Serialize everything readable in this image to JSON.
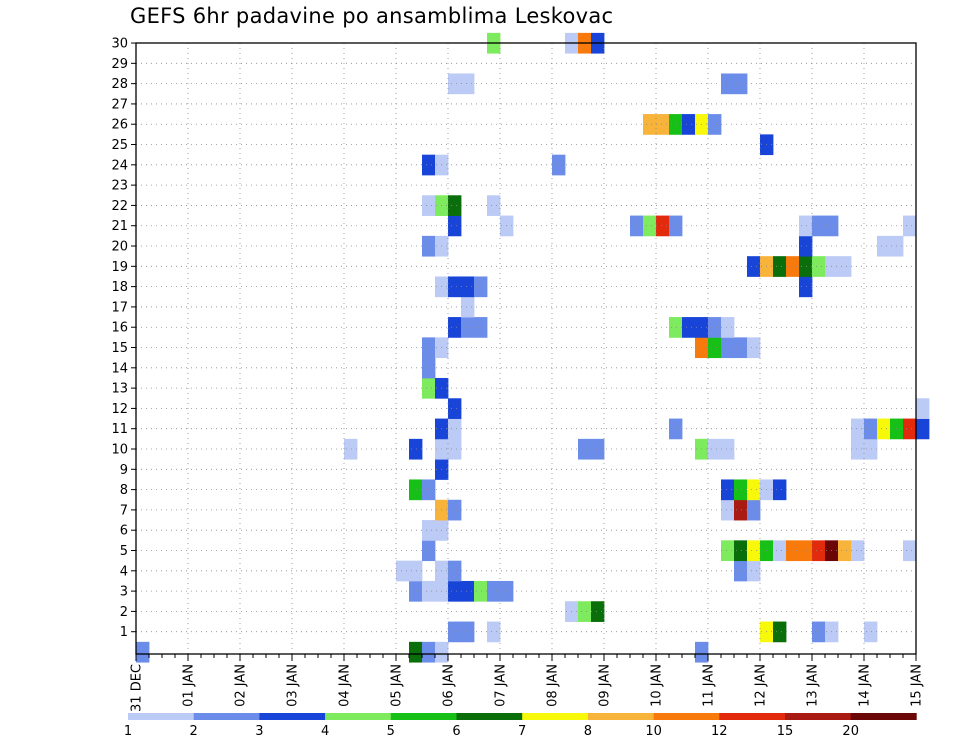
{
  "chart_data": {
    "type": "heatmap",
    "title": "GEFS 6hr padavine po ansamblima Leskovac",
    "xlabel": "",
    "ylabel": "",
    "x_tick_labels": [
      "31 DEC",
      "01 JAN",
      "02 JAN",
      "03 JAN",
      "04 JAN",
      "05 JAN",
      "06 JAN",
      "07 JAN",
      "08 JAN",
      "09 JAN",
      "10 JAN",
      "11 JAN",
      "12 JAN",
      "13 JAN",
      "14 JAN",
      "15 JAN"
    ],
    "y_tick_labels": [
      "1",
      "2",
      "3",
      "4",
      "5",
      "6",
      "7",
      "8",
      "9",
      "10",
      "11",
      "12",
      "13",
      "14",
      "15",
      "16",
      "17",
      "18",
      "19",
      "20",
      "21",
      "22",
      "23",
      "24",
      "25",
      "26",
      "27",
      "28",
      "29",
      "30"
    ],
    "grid": true,
    "legend": {
      "placement": "bottom",
      "labels": [
        "1",
        "2",
        "3",
        "4",
        "5",
        "6",
        "7",
        "8",
        "10",
        "12",
        "15",
        "20"
      ],
      "colors": [
        "#bccbf6",
        "#6b8de9",
        "#1845d8",
        "#7deb5d",
        "#17c017",
        "#0a6e0a",
        "#f8f80b",
        "#f8b33a",
        "#f87a0d",
        "#e22b0d",
        "#a91a12",
        "#6b0707"
      ]
    },
    "cell_time_unit": "6h steps from 31 DEC 00Z",
    "cells": [
      {
        "m": 0,
        "t": 0,
        "c": 1
      },
      {
        "m": 0,
        "t": 21,
        "c": 5
      },
      {
        "m": 0,
        "t": 22,
        "c": 1
      },
      {
        "m": 0,
        "t": 23,
        "c": 0
      },
      {
        "m": 0,
        "t": 43,
        "c": 1
      },
      {
        "m": 1,
        "t": 24,
        "c": 1
      },
      {
        "m": 1,
        "t": 25,
        "c": 1
      },
      {
        "m": 1,
        "t": 27,
        "c": 0
      },
      {
        "m": 1,
        "t": 48,
        "c": 6
      },
      {
        "m": 1,
        "t": 49,
        "c": 5
      },
      {
        "m": 1,
        "t": 52,
        "c": 1
      },
      {
        "m": 1,
        "t": 53,
        "c": 0
      },
      {
        "m": 1,
        "t": 56,
        "c": 0
      },
      {
        "m": 2,
        "t": 33,
        "c": 0
      },
      {
        "m": 2,
        "t": 34,
        "c": 3
      },
      {
        "m": 2,
        "t": 35,
        "c": 5
      },
      {
        "m": 3,
        "t": 21,
        "c": 1
      },
      {
        "m": 3,
        "t": 22,
        "c": 0
      },
      {
        "m": 3,
        "t": 23,
        "c": 0
      },
      {
        "m": 3,
        "t": 24,
        "c": 2
      },
      {
        "m": 3,
        "t": 25,
        "c": 2
      },
      {
        "m": 3,
        "t": 26,
        "c": 3
      },
      {
        "m": 3,
        "t": 27,
        "c": 1
      },
      {
        "m": 3,
        "t": 28,
        "c": 1
      },
      {
        "m": 4,
        "t": 20,
        "c": 0
      },
      {
        "m": 4,
        "t": 21,
        "c": 0
      },
      {
        "m": 4,
        "t": 23,
        "c": 0
      },
      {
        "m": 4,
        "t": 24,
        "c": 1
      },
      {
        "m": 4,
        "t": 46,
        "c": 1
      },
      {
        "m": 4,
        "t": 47,
        "c": 0
      },
      {
        "m": 5,
        "t": 22,
        "c": 1
      },
      {
        "m": 5,
        "t": 45,
        "c": 3
      },
      {
        "m": 5,
        "t": 46,
        "c": 5
      },
      {
        "m": 5,
        "t": 47,
        "c": 6
      },
      {
        "m": 5,
        "t": 48,
        "c": 4
      },
      {
        "m": 5,
        "t": 49,
        "c": 0
      },
      {
        "m": 5,
        "t": 50,
        "c": 8
      },
      {
        "m": 5,
        "t": 51,
        "c": 8
      },
      {
        "m": 5,
        "t": 52,
        "c": 9
      },
      {
        "m": 5,
        "t": 53,
        "c": 11
      },
      {
        "m": 5,
        "t": 54,
        "c": 7
      },
      {
        "m": 5,
        "t": 55,
        "c": 0
      },
      {
        "m": 5,
        "t": 59,
        "c": 0
      },
      {
        "m": 6,
        "t": 22,
        "c": 0
      },
      {
        "m": 6,
        "t": 23,
        "c": 0
      },
      {
        "m": 7,
        "t": 23,
        "c": 7
      },
      {
        "m": 7,
        "t": 24,
        "c": 1
      },
      {
        "m": 7,
        "t": 45,
        "c": 0
      },
      {
        "m": 7,
        "t": 46,
        "c": 10
      },
      {
        "m": 7,
        "t": 47,
        "c": 1
      },
      {
        "m": 8,
        "t": 21,
        "c": 4
      },
      {
        "m": 8,
        "t": 22,
        "c": 1
      },
      {
        "m": 8,
        "t": 45,
        "c": 2
      },
      {
        "m": 8,
        "t": 46,
        "c": 4
      },
      {
        "m": 8,
        "t": 47,
        "c": 6
      },
      {
        "m": 8,
        "t": 48,
        "c": 0
      },
      {
        "m": 8,
        "t": 49,
        "c": 2
      },
      {
        "m": 9,
        "t": 23,
        "c": 2
      },
      {
        "m": 10,
        "t": 16,
        "c": 0
      },
      {
        "m": 10,
        "t": 21,
        "c": 2
      },
      {
        "m": 10,
        "t": 23,
        "c": 0
      },
      {
        "m": 10,
        "t": 24,
        "c": 0
      },
      {
        "m": 10,
        "t": 34,
        "c": 1
      },
      {
        "m": 10,
        "t": 35,
        "c": 1
      },
      {
        "m": 10,
        "t": 43,
        "c": 3
      },
      {
        "m": 10,
        "t": 44,
        "c": 0
      },
      {
        "m": 10,
        "t": 45,
        "c": 0
      },
      {
        "m": 10,
        "t": 55,
        "c": 0
      },
      {
        "m": 10,
        "t": 56,
        "c": 0
      },
      {
        "m": 11,
        "t": 23,
        "c": 2
      },
      {
        "m": 11,
        "t": 24,
        "c": 0
      },
      {
        "m": 11,
        "t": 41,
        "c": 1
      },
      {
        "m": 11,
        "t": 55,
        "c": 0
      },
      {
        "m": 11,
        "t": 56,
        "c": 1
      },
      {
        "m": 11,
        "t": 57,
        "c": 6
      },
      {
        "m": 11,
        "t": 58,
        "c": 4
      },
      {
        "m": 11,
        "t": 59,
        "c": 9
      },
      {
        "m": 11,
        "t": 60,
        "c": 2
      },
      {
        "m": 12,
        "t": 24,
        "c": 2
      },
      {
        "m": 12,
        "t": 60,
        "c": 0
      },
      {
        "m": 13,
        "t": 22,
        "c": 3
      },
      {
        "m": 13,
        "t": 23,
        "c": 2
      },
      {
        "m": 14,
        "t": 22,
        "c": 1
      },
      {
        "m": 15,
        "t": 22,
        "c": 1
      },
      {
        "m": 15,
        "t": 23,
        "c": 0
      },
      {
        "m": 15,
        "t": 43,
        "c": 8
      },
      {
        "m": 15,
        "t": 44,
        "c": 4
      },
      {
        "m": 15,
        "t": 45,
        "c": 1
      },
      {
        "m": 15,
        "t": 46,
        "c": 1
      },
      {
        "m": 15,
        "t": 47,
        "c": 0
      },
      {
        "m": 16,
        "t": 24,
        "c": 2
      },
      {
        "m": 16,
        "t": 25,
        "c": 1
      },
      {
        "m": 16,
        "t": 26,
        "c": 1
      },
      {
        "m": 16,
        "t": 41,
        "c": 3
      },
      {
        "m": 16,
        "t": 42,
        "c": 2
      },
      {
        "m": 16,
        "t": 43,
        "c": 2
      },
      {
        "m": 16,
        "t": 44,
        "c": 1
      },
      {
        "m": 16,
        "t": 45,
        "c": 0
      },
      {
        "m": 17,
        "t": 25,
        "c": 0
      },
      {
        "m": 18,
        "t": 23,
        "c": 0
      },
      {
        "m": 18,
        "t": 24,
        "c": 2
      },
      {
        "m": 18,
        "t": 25,
        "c": 2
      },
      {
        "m": 18,
        "t": 26,
        "c": 1
      },
      {
        "m": 18,
        "t": 51,
        "c": 2
      },
      {
        "m": 19,
        "t": 47,
        "c": 2
      },
      {
        "m": 19,
        "t": 48,
        "c": 7
      },
      {
        "m": 19,
        "t": 49,
        "c": 5
      },
      {
        "m": 19,
        "t": 50,
        "c": 8
      },
      {
        "m": 19,
        "t": 51,
        "c": 5
      },
      {
        "m": 19,
        "t": 52,
        "c": 3
      },
      {
        "m": 19,
        "t": 53,
        "c": 0
      },
      {
        "m": 19,
        "t": 54,
        "c": 0
      },
      {
        "m": 20,
        "t": 22,
        "c": 1
      },
      {
        "m": 20,
        "t": 23,
        "c": 0
      },
      {
        "m": 20,
        "t": 51,
        "c": 2
      },
      {
        "m": 20,
        "t": 57,
        "c": 0
      },
      {
        "m": 20,
        "t": 58,
        "c": 0
      },
      {
        "m": 21,
        "t": 24,
        "c": 2
      },
      {
        "m": 21,
        "t": 28,
        "c": 0
      },
      {
        "m": 21,
        "t": 38,
        "c": 1
      },
      {
        "m": 21,
        "t": 39,
        "c": 3
      },
      {
        "m": 21,
        "t": 40,
        "c": 9
      },
      {
        "m": 21,
        "t": 41,
        "c": 1
      },
      {
        "m": 21,
        "t": 51,
        "c": 0
      },
      {
        "m": 21,
        "t": 52,
        "c": 1
      },
      {
        "m": 21,
        "t": 53,
        "c": 1
      },
      {
        "m": 21,
        "t": 59,
        "c": 0
      },
      {
        "m": 22,
        "t": 22,
        "c": 0
      },
      {
        "m": 22,
        "t": 23,
        "c": 3
      },
      {
        "m": 22,
        "t": 24,
        "c": 5
      },
      {
        "m": 22,
        "t": 27,
        "c": 0
      },
      {
        "m": 24,
        "t": 22,
        "c": 2
      },
      {
        "m": 24,
        "t": 23,
        "c": 0
      },
      {
        "m": 24,
        "t": 32,
        "c": 1
      },
      {
        "m": 25,
        "t": 48,
        "c": 2
      },
      {
        "m": 26,
        "t": 39,
        "c": 7
      },
      {
        "m": 26,
        "t": 40,
        "c": 7
      },
      {
        "m": 26,
        "t": 41,
        "c": 4
      },
      {
        "m": 26,
        "t": 42,
        "c": 2
      },
      {
        "m": 26,
        "t": 43,
        "c": 6
      },
      {
        "m": 26,
        "t": 44,
        "c": 1
      },
      {
        "m": 28,
        "t": 24,
        "c": 0
      },
      {
        "m": 28,
        "t": 25,
        "c": 0
      },
      {
        "m": 28,
        "t": 45,
        "c": 1
      },
      {
        "m": 28,
        "t": 46,
        "c": 1
      },
      {
        "m": 30,
        "t": 27,
        "c": 3
      },
      {
        "m": 30,
        "t": 33,
        "c": 0
      },
      {
        "m": 30,
        "t": 34,
        "c": 8
      },
      {
        "m": 30,
        "t": 35,
        "c": 2
      }
    ]
  }
}
